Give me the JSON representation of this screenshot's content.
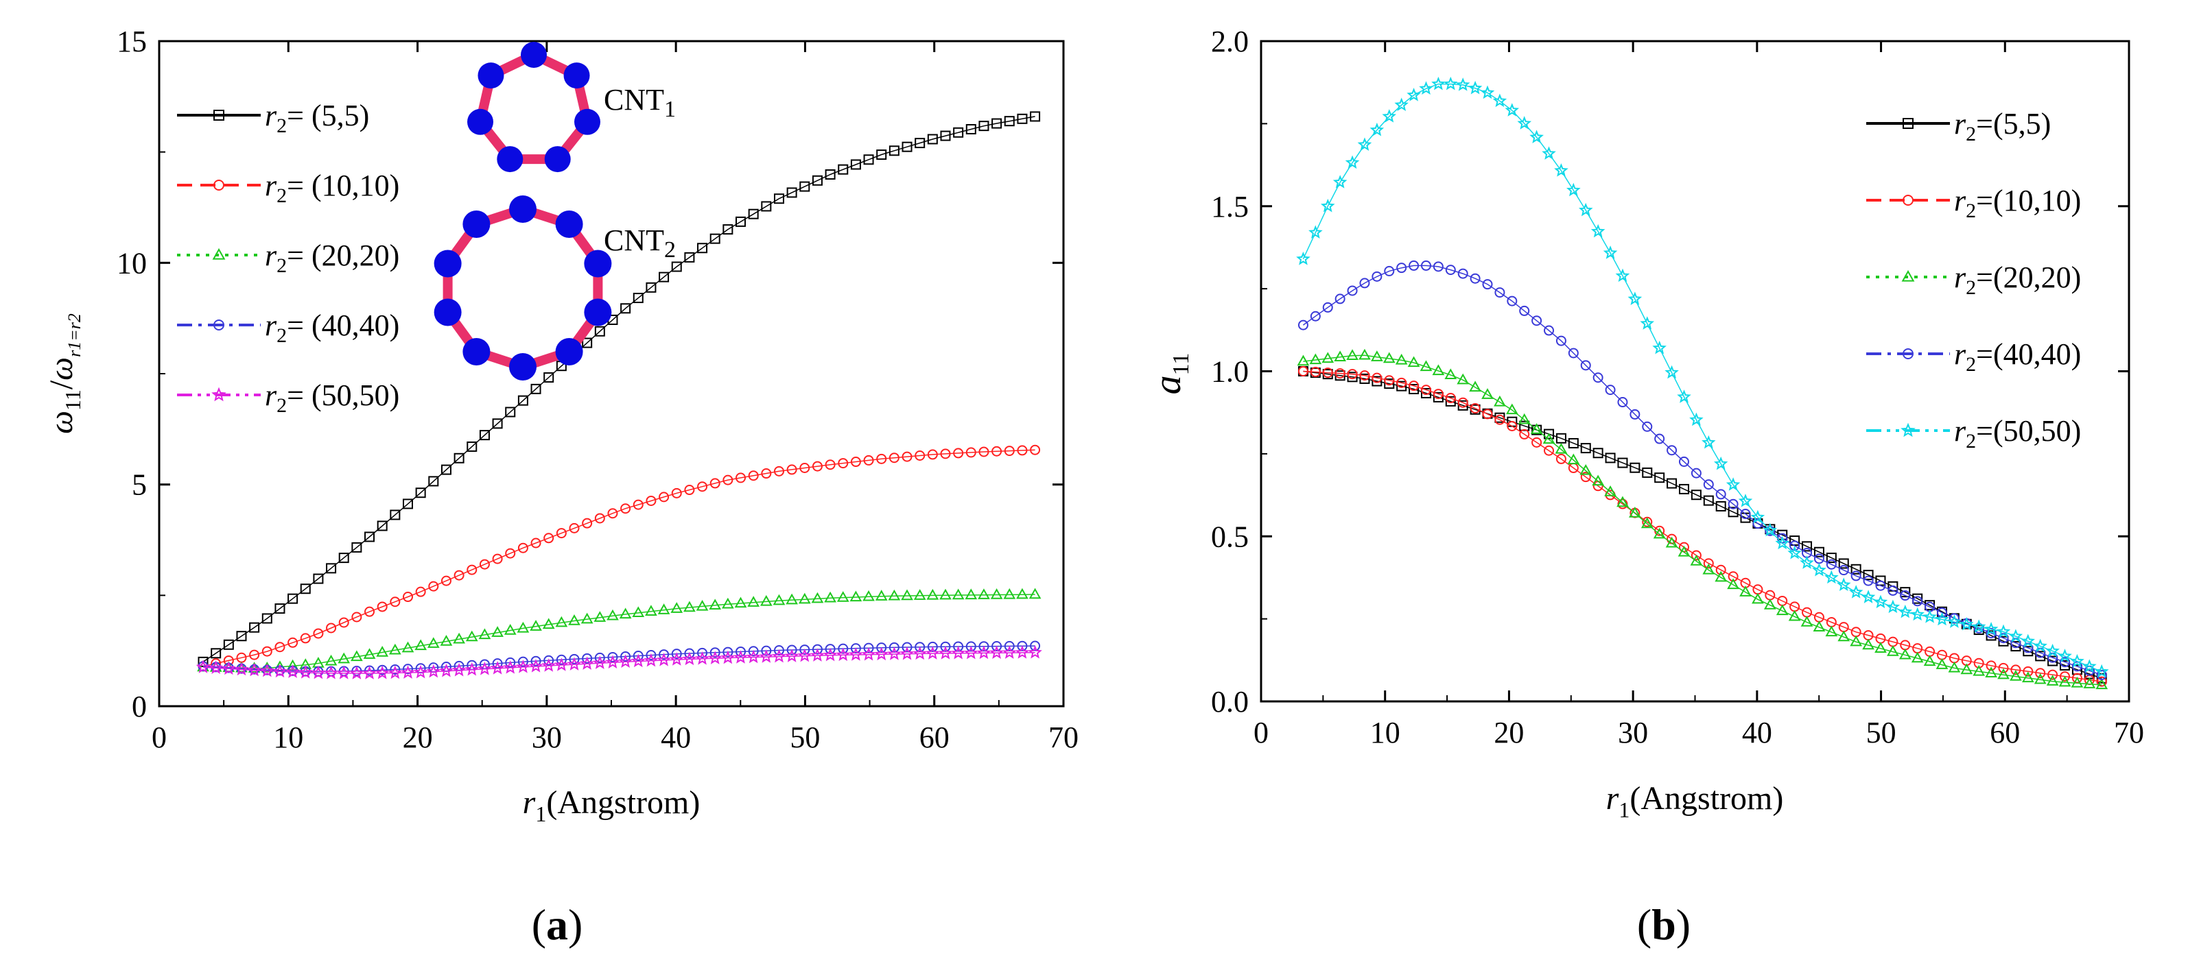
{
  "panel_labels": [
    {
      "open": "(",
      "letter": "a",
      "close": ")"
    },
    {
      "open": "(",
      "letter": "b",
      "close": ")"
    }
  ],
  "colors": {
    "s55": "#000000",
    "s1010": "#ff2020",
    "s2020": "#1ec81e",
    "s4040": "#3a3ad8",
    "s5050a": "#e020e0",
    "s5050b": "#10d8e8",
    "cnt_ring": "#e8306a",
    "cnt_atom": "#0a0ae0"
  },
  "chart_data": [
    {
      "type": "scatter",
      "panel": "a",
      "xlabel": {
        "var": "r",
        "sub": "1",
        "rest": "(Angstrom)"
      },
      "ylabel": {
        "main": "ω",
        "sub": "11",
        "sep": "/",
        "denom": "ω",
        "denom_sub": "r1=r2"
      },
      "xlim": [
        0,
        70
      ],
      "ylim": [
        0,
        15
      ],
      "xticks": [
        0,
        10,
        20,
        30,
        40,
        50,
        60,
        70
      ],
      "yticks": [
        0,
        5,
        10,
        15
      ],
      "x_range": [
        3.4,
        67.8
      ],
      "insets": [
        {
          "label_main": "CNT",
          "label_sub": "1",
          "atoms": 7
        },
        {
          "label_main": "CNT",
          "label_sub": "2",
          "atoms": 10
        }
      ],
      "series": [
        {
          "name": "r2= (5,5)",
          "legend_main": "r",
          "legend_sub": "2",
          "legend_rest": "= (5,5)",
          "marker": "square",
          "dash": "solid",
          "color_key": "s55",
          "x": [
            3.4,
            8,
            12,
            16,
            20,
            24,
            28,
            32,
            36,
            40,
            44,
            48,
            52,
            56,
            60,
            64,
            67.8
          ],
          "y": [
            1.0,
            1.9,
            2.8,
            3.75,
            4.75,
            5.8,
            6.85,
            7.9,
            8.95,
            9.9,
            10.75,
            11.45,
            12.0,
            12.45,
            12.8,
            13.1,
            13.3
          ]
        },
        {
          "name": "r2= (10,10)",
          "legend_main": "r",
          "legend_sub": "2",
          "legend_rest": "= (10,10)",
          "marker": "circle",
          "dash": "dash",
          "color_key": "s1010",
          "x": [
            3.4,
            8,
            12,
            16,
            20,
            24,
            28,
            32,
            36,
            40,
            44,
            48,
            52,
            56,
            60,
            64,
            67.8
          ],
          "y": [
            0.9,
            1.2,
            1.6,
            2.1,
            2.55,
            3.05,
            3.55,
            4.0,
            4.45,
            4.8,
            5.1,
            5.3,
            5.45,
            5.58,
            5.68,
            5.74,
            5.78
          ]
        },
        {
          "name": "r2= (20,20)",
          "legend_main": "r",
          "legend_sub": "2",
          "legend_rest": "= (20,20)",
          "marker": "triangle",
          "dash": "dot",
          "color_key": "s2020",
          "x": [
            3.4,
            8,
            12,
            16,
            20,
            24,
            28,
            32,
            36,
            40,
            44,
            48,
            52,
            56,
            60,
            64,
            67.8
          ],
          "y": [
            0.88,
            0.85,
            0.95,
            1.15,
            1.35,
            1.55,
            1.75,
            1.92,
            2.07,
            2.2,
            2.3,
            2.38,
            2.44,
            2.48,
            2.5,
            2.51,
            2.52
          ]
        },
        {
          "name": "r2= (40,40)",
          "legend_main": "r",
          "legend_sub": "2",
          "legend_rest": "= (40,40)",
          "marker": "circle",
          "dash": "dashdot",
          "color_key": "s4040",
          "x": [
            3.4,
            8,
            12,
            16,
            20,
            24,
            28,
            32,
            36,
            40,
            44,
            48,
            52,
            56,
            60,
            64,
            67.8
          ],
          "y": [
            0.9,
            0.82,
            0.78,
            0.8,
            0.85,
            0.92,
            1.0,
            1.06,
            1.12,
            1.18,
            1.22,
            1.26,
            1.29,
            1.32,
            1.34,
            1.35,
            1.36
          ]
        },
        {
          "name": "r2= (50,50)",
          "legend_main": "r",
          "legend_sub": "2",
          "legend_rest": "= (50,50)",
          "marker": "star",
          "dash": "dashdotdot",
          "color_key": "s5050a",
          "x": [
            3.4,
            8,
            12,
            16,
            20,
            24,
            28,
            32,
            36,
            40,
            44,
            48,
            52,
            56,
            60,
            64,
            67.8
          ],
          "y": [
            0.88,
            0.8,
            0.75,
            0.74,
            0.76,
            0.82,
            0.88,
            0.94,
            1.0,
            1.05,
            1.09,
            1.12,
            1.15,
            1.17,
            1.19,
            1.2,
            1.21
          ]
        }
      ]
    },
    {
      "type": "scatter",
      "panel": "b",
      "xlabel": {
        "var": "r",
        "sub": "1",
        "rest": "(Angstrom)"
      },
      "ylabel": {
        "main": "a",
        "sub": "11"
      },
      "xlim": [
        0,
        70
      ],
      "ylim": [
        0.0,
        2.0
      ],
      "xticks": [
        0,
        10,
        20,
        30,
        40,
        50,
        60,
        70
      ],
      "yticks": [
        "0.0",
        "0.5",
        "1.0",
        "1.5",
        "2.0"
      ],
      "x_range": [
        3.4,
        67.8
      ],
      "series": [
        {
          "name": "r2=(5,5)",
          "legend_main": "r",
          "legend_sub": "2",
          "legend_rest": "=(5,5)",
          "marker": "square",
          "dash": "solid",
          "color_key": "s55",
          "x": [
            3.4,
            8,
            12,
            16,
            20,
            24,
            28,
            32,
            36,
            40,
            44,
            48,
            52,
            56,
            60,
            64,
            67.8
          ],
          "y": [
            1.0,
            0.98,
            0.95,
            0.9,
            0.85,
            0.8,
            0.74,
            0.68,
            0.61,
            0.54,
            0.47,
            0.4,
            0.33,
            0.25,
            0.18,
            0.12,
            0.07
          ]
        },
        {
          "name": "r2=(10,10)",
          "legend_main": "r",
          "legend_sub": "2",
          "legend_rest": "=(10,10)",
          "marker": "circle",
          "dash": "dash",
          "color_key": "s1010",
          "x": [
            3.4,
            8,
            12,
            16,
            20,
            24,
            28,
            32,
            36,
            40,
            44,
            48,
            52,
            56,
            60,
            64,
            67.8
          ],
          "y": [
            1.0,
            0.99,
            0.96,
            0.91,
            0.84,
            0.74,
            0.63,
            0.52,
            0.42,
            0.34,
            0.27,
            0.21,
            0.17,
            0.13,
            0.1,
            0.08,
            0.06
          ]
        },
        {
          "name": "r2=(20,20)",
          "legend_main": "r",
          "legend_sub": "2",
          "legend_rest": "=(20,20)",
          "marker": "triangle",
          "dash": "dot",
          "color_key": "s2020",
          "x": [
            3.4,
            8,
            12,
            16,
            20,
            24,
            28,
            32,
            36,
            40,
            44,
            48,
            52,
            56,
            60,
            64,
            67.8
          ],
          "y": [
            1.03,
            1.05,
            1.03,
            0.98,
            0.89,
            0.77,
            0.64,
            0.51,
            0.4,
            0.31,
            0.24,
            0.18,
            0.14,
            0.1,
            0.08,
            0.06,
            0.05
          ]
        },
        {
          "name": "r2=(40,40)",
          "legend_main": "r",
          "legend_sub": "2",
          "legend_rest": "=(40,40)",
          "marker": "circle",
          "dash": "dashdot",
          "color_key": "s4040",
          "x": [
            3.4,
            6,
            8,
            10,
            12,
            14,
            16,
            18,
            20,
            24,
            28,
            32,
            36,
            40,
            44,
            48,
            52,
            56,
            60,
            64,
            67.8
          ],
          "y": [
            1.14,
            1.21,
            1.26,
            1.3,
            1.32,
            1.32,
            1.3,
            1.27,
            1.22,
            1.1,
            0.95,
            0.8,
            0.66,
            0.54,
            0.45,
            0.38,
            0.32,
            0.25,
            0.19,
            0.13,
            0.08
          ]
        },
        {
          "name": "r2=(50,50)",
          "legend_main": "r",
          "legend_sub": "2",
          "legend_rest": "=(50,50)",
          "marker": "star",
          "dash": "dashdotdot",
          "color_key": "s5050b",
          "x": [
            3.4,
            6,
            8,
            10,
            12,
            14,
            16,
            18,
            20,
            22,
            24,
            26,
            28,
            30,
            32,
            34,
            36,
            38,
            40,
            42,
            44,
            48,
            52,
            56,
            60,
            64,
            67.8
          ],
          "y": [
            1.34,
            1.55,
            1.67,
            1.76,
            1.83,
            1.87,
            1.87,
            1.85,
            1.8,
            1.72,
            1.62,
            1.5,
            1.37,
            1.23,
            1.08,
            0.93,
            0.79,
            0.66,
            0.56,
            0.48,
            0.42,
            0.33,
            0.27,
            0.24,
            0.21,
            0.15,
            0.09
          ]
        }
      ]
    }
  ]
}
